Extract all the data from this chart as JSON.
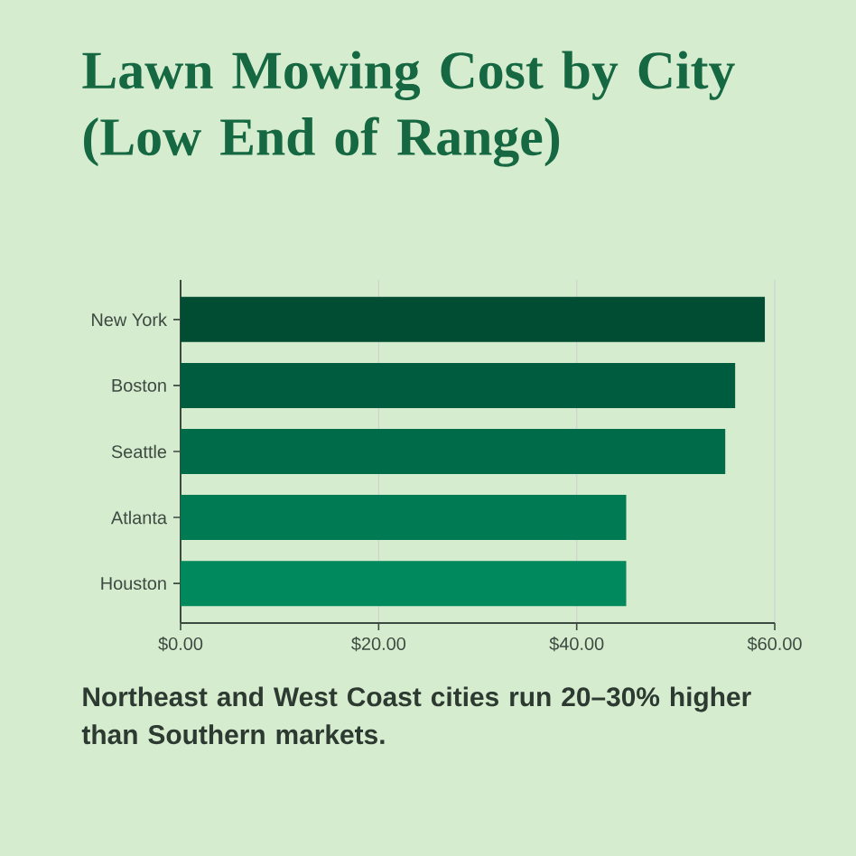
{
  "chart_data": {
    "type": "bar",
    "orientation": "horizontal",
    "title": "Lawn Mowing Cost by City (Low End of Range)",
    "categories": [
      "New York",
      "Boston",
      "Seattle",
      "Atlanta",
      "Houston"
    ],
    "values": [
      59,
      56,
      55,
      45,
      45
    ],
    "colors": [
      "#004d33",
      "#005c3f",
      "#006b48",
      "#007a52",
      "#00895c"
    ],
    "xlim": [
      0,
      60
    ],
    "xticks": [
      {
        "value": 0,
        "label": "$0.00"
      },
      {
        "value": 20,
        "label": "$20.00"
      },
      {
        "value": 40,
        "label": "$40.00"
      },
      {
        "value": 60,
        "label": "$60.00"
      }
    ],
    "grid": "x",
    "annotations": [
      "Northeast and West Coast cities run 20–30% higher than Southern markets."
    ]
  }
}
